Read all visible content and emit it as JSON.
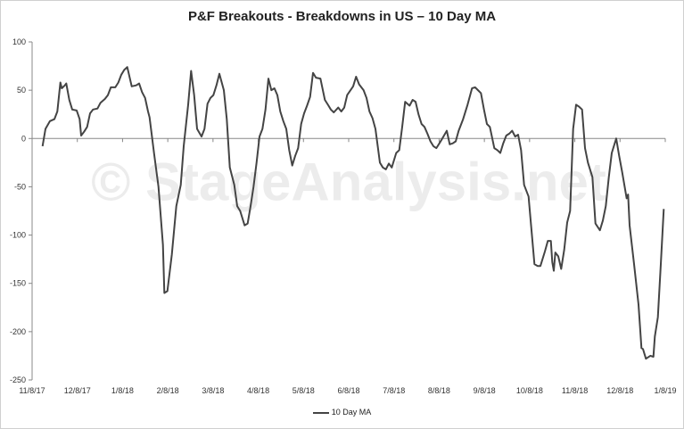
{
  "chart_data": {
    "type": "line",
    "title": "P&F Breakouts - Breakdowns in US – 10 Day MA",
    "watermark": "© StageAnalysis.net",
    "xlabel": "",
    "ylabel": "",
    "x_start": "2017-11-08",
    "xlim": [
      "2017-11-08",
      "2019-01-08"
    ],
    "ylim": [
      -250,
      100
    ],
    "yticks": [
      100,
      50,
      0,
      -50,
      -100,
      -150,
      -200,
      -250
    ],
    "xtick_labels": [
      "11/8/17",
      "12/8/17",
      "1/8/18",
      "2/8/18",
      "3/8/18",
      "4/8/18",
      "5/8/18",
      "6/8/18",
      "7/8/18",
      "8/8/18",
      "9/8/18",
      "10/8/18",
      "11/8/18",
      "12/8/18",
      "1/8/19"
    ],
    "grid": false,
    "legend_position": "bottom",
    "line_color": "#444444",
    "series": [
      {
        "name": "10 Day MA",
        "points": [
          [
            "2017-11-15",
            -8
          ],
          [
            "2017-11-17",
            10
          ],
          [
            "2017-11-20",
            18
          ],
          [
            "2017-11-23",
            20
          ],
          [
            "2017-11-25",
            28
          ],
          [
            "2017-11-27",
            58
          ],
          [
            "2017-11-28",
            52
          ],
          [
            "2017-11-30",
            55
          ],
          [
            "2017-12-01",
            57
          ],
          [
            "2017-12-03",
            40
          ],
          [
            "2017-12-05",
            30
          ],
          [
            "2017-12-08",
            29
          ],
          [
            "2017-12-10",
            20
          ],
          [
            "2017-12-11",
            3
          ],
          [
            "2017-12-13",
            7
          ],
          [
            "2017-12-15",
            12
          ],
          [
            "2017-12-17",
            26
          ],
          [
            "2017-12-19",
            30
          ],
          [
            "2017-12-22",
            31
          ],
          [
            "2017-12-24",
            37
          ],
          [
            "2017-12-27",
            41
          ],
          [
            "2017-12-29",
            45
          ],
          [
            "2017-12-31",
            53
          ],
          [
            "2018-01-03",
            53
          ],
          [
            "2018-01-05",
            58
          ],
          [
            "2018-01-07",
            66
          ],
          [
            "2018-01-09",
            71
          ],
          [
            "2018-01-11",
            74
          ],
          [
            "2018-01-14",
            54
          ],
          [
            "2018-01-17",
            55
          ],
          [
            "2018-01-19",
            57
          ],
          [
            "2018-01-21",
            48
          ],
          [
            "2018-01-23",
            42
          ],
          [
            "2018-01-25",
            28
          ],
          [
            "2018-01-26",
            22
          ],
          [
            "2018-01-29",
            -15
          ],
          [
            "2018-02-01",
            -50
          ],
          [
            "2018-02-04",
            -110
          ],
          [
            "2018-02-05",
            -160
          ],
          [
            "2018-02-07",
            -158
          ],
          [
            "2018-02-10",
            -120
          ],
          [
            "2018-02-13",
            -70
          ],
          [
            "2018-02-16",
            -48
          ],
          [
            "2018-02-18",
            -8
          ],
          [
            "2018-02-21",
            35
          ],
          [
            "2018-02-23",
            70
          ],
          [
            "2018-02-25",
            45
          ],
          [
            "2018-02-27",
            10
          ],
          [
            "2018-03-02",
            2
          ],
          [
            "2018-03-04",
            10
          ],
          [
            "2018-03-06",
            36
          ],
          [
            "2018-03-08",
            42
          ],
          [
            "2018-03-10",
            45
          ],
          [
            "2018-03-12",
            55
          ],
          [
            "2018-03-14",
            67
          ],
          [
            "2018-03-17",
            50
          ],
          [
            "2018-03-19",
            20
          ],
          [
            "2018-03-21",
            -30
          ],
          [
            "2018-03-24",
            -48
          ],
          [
            "2018-03-26",
            -70
          ],
          [
            "2018-03-28",
            -75
          ],
          [
            "2018-03-31",
            -90
          ],
          [
            "2018-04-02",
            -88
          ],
          [
            "2018-04-04",
            -70
          ],
          [
            "2018-04-06",
            -50
          ],
          [
            "2018-04-08",
            -25
          ],
          [
            "2018-04-10",
            2
          ],
          [
            "2018-04-12",
            10
          ],
          [
            "2018-04-14",
            30
          ],
          [
            "2018-04-16",
            62
          ],
          [
            "2018-04-18",
            50
          ],
          [
            "2018-04-20",
            52
          ],
          [
            "2018-04-22",
            45
          ],
          [
            "2018-04-24",
            28
          ],
          [
            "2018-04-26",
            18
          ],
          [
            "2018-04-28",
            10
          ],
          [
            "2018-04-30",
            -12
          ],
          [
            "2018-05-02",
            -28
          ],
          [
            "2018-05-04",
            -18
          ],
          [
            "2018-05-06",
            -10
          ],
          [
            "2018-05-08",
            15
          ],
          [
            "2018-05-10",
            26
          ],
          [
            "2018-05-12",
            34
          ],
          [
            "2018-05-14",
            43
          ],
          [
            "2018-05-16",
            68
          ],
          [
            "2018-05-18",
            63
          ],
          [
            "2018-05-21",
            62
          ],
          [
            "2018-05-24",
            40
          ],
          [
            "2018-05-26",
            35
          ],
          [
            "2018-05-28",
            30
          ],
          [
            "2018-05-30",
            27
          ],
          [
            "2018-06-02",
            32
          ],
          [
            "2018-06-04",
            28
          ],
          [
            "2018-06-06",
            32
          ],
          [
            "2018-06-08",
            45
          ],
          [
            "2018-06-12",
            54
          ],
          [
            "2018-06-14",
            64
          ],
          [
            "2018-06-16",
            56
          ],
          [
            "2018-06-19",
            50
          ],
          [
            "2018-06-21",
            42
          ],
          [
            "2018-06-23",
            28
          ],
          [
            "2018-06-25",
            21
          ],
          [
            "2018-06-27",
            10
          ],
          [
            "2018-06-30",
            -25
          ],
          [
            "2018-07-02",
            -30
          ],
          [
            "2018-07-04",
            -32
          ],
          [
            "2018-07-06",
            -26
          ],
          [
            "2018-07-08",
            -30
          ],
          [
            "2018-07-11",
            -15
          ],
          [
            "2018-07-13",
            -12
          ],
          [
            "2018-07-15",
            12
          ],
          [
            "2018-07-17",
            38
          ],
          [
            "2018-07-20",
            34
          ],
          [
            "2018-07-22",
            40
          ],
          [
            "2018-07-24",
            38
          ],
          [
            "2018-07-26",
            25
          ],
          [
            "2018-07-28",
            15
          ],
          [
            "2018-07-30",
            12
          ],
          [
            "2018-08-01",
            5
          ],
          [
            "2018-08-03",
            -3
          ],
          [
            "2018-08-05",
            -8
          ],
          [
            "2018-08-07",
            -10
          ],
          [
            "2018-08-09",
            -5
          ],
          [
            "2018-08-11",
            0
          ],
          [
            "2018-08-14",
            8
          ],
          [
            "2018-08-16",
            -6
          ],
          [
            "2018-08-18",
            -5
          ],
          [
            "2018-08-20",
            -3
          ],
          [
            "2018-08-22",
            8
          ],
          [
            "2018-08-25",
            20
          ],
          [
            "2018-08-28",
            35
          ],
          [
            "2018-08-31",
            52
          ],
          [
            "2018-09-02",
            53
          ],
          [
            "2018-09-04",
            50
          ],
          [
            "2018-09-06",
            47
          ],
          [
            "2018-09-08",
            30
          ],
          [
            "2018-09-10",
            15
          ],
          [
            "2018-09-12",
            12
          ],
          [
            "2018-09-15",
            -10
          ],
          [
            "2018-09-17",
            -12
          ],
          [
            "2018-09-19",
            -15
          ],
          [
            "2018-09-21",
            -5
          ],
          [
            "2018-09-23",
            3
          ],
          [
            "2018-09-25",
            5
          ],
          [
            "2018-09-27",
            8
          ],
          [
            "2018-09-29",
            2
          ],
          [
            "2018-10-01",
            4
          ],
          [
            "2018-10-03",
            -12
          ],
          [
            "2018-10-05",
            -48
          ],
          [
            "2018-10-08",
            -60
          ],
          [
            "2018-10-10",
            -95
          ],
          [
            "2018-10-12",
            -130
          ],
          [
            "2018-10-14",
            -132
          ],
          [
            "2018-10-16",
            -132
          ],
          [
            "2018-10-19",
            -117
          ],
          [
            "2018-10-21",
            -106
          ],
          [
            "2018-10-23",
            -106
          ],
          [
            "2018-10-24",
            -128
          ],
          [
            "2018-10-25",
            -137
          ],
          [
            "2018-10-26",
            -118
          ],
          [
            "2018-10-28",
            -122
          ],
          [
            "2018-10-30",
            -135
          ],
          [
            "2018-11-01",
            -115
          ],
          [
            "2018-11-03",
            -87
          ],
          [
            "2018-11-05",
            -75
          ],
          [
            "2018-11-07",
            10
          ],
          [
            "2018-11-09",
            35
          ],
          [
            "2018-11-11",
            33
          ],
          [
            "2018-11-13",
            30
          ],
          [
            "2018-11-15",
            -10
          ],
          [
            "2018-11-17",
            -25
          ],
          [
            "2018-11-20",
            -40
          ],
          [
            "2018-11-22",
            -88
          ],
          [
            "2018-11-25",
            -95
          ],
          [
            "2018-11-27",
            -85
          ],
          [
            "2018-11-29",
            -70
          ],
          [
            "2018-12-01",
            -40
          ],
          [
            "2018-12-03",
            -15
          ],
          [
            "2018-12-06",
            0
          ],
          [
            "2018-12-08",
            -18
          ],
          [
            "2018-12-10",
            -35
          ],
          [
            "2018-12-13",
            -62
          ],
          [
            "2018-12-14",
            -58
          ],
          [
            "2018-12-15",
            -90
          ],
          [
            "2018-12-18",
            -130
          ],
          [
            "2018-12-21",
            -172
          ],
          [
            "2018-12-23",
            -217
          ],
          [
            "2018-12-24",
            -218
          ],
          [
            "2018-12-26",
            -228
          ],
          [
            "2018-12-29",
            -225
          ],
          [
            "2018-12-31",
            -226
          ],
          [
            "2019-01-01",
            -205
          ],
          [
            "2019-01-03",
            -185
          ],
          [
            "2019-01-05",
            -130
          ],
          [
            "2019-01-07",
            -73
          ]
        ]
      }
    ]
  }
}
